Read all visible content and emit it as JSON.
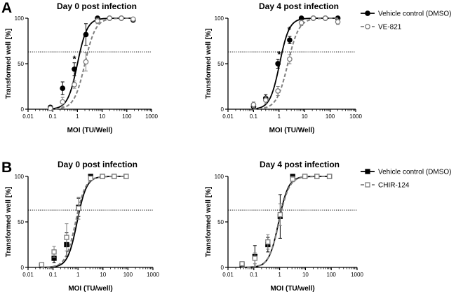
{
  "panels": [
    {
      "letter": "A",
      "legend": [
        "Vehicle control (DMSO)",
        "VE-821"
      ],
      "charts": [
        {
          "type": "line",
          "title": "Day 0 post infection",
          "xlabel": "MOI (TU/Well)",
          "ylabel": "Transformed well [%]",
          "xscale": "log",
          "xlim": [
            0.01,
            1000
          ],
          "ylim": [
            0,
            100
          ],
          "xticks": [
            "0.01",
            "0.1",
            "1",
            "10",
            "100",
            "1000"
          ],
          "yticks": [
            "0",
            "50",
            "100"
          ],
          "threshold": 63,
          "marker": "circle",
          "annotations": [
            {
              "text": "*",
              "x": 0.75,
              "y": 52
            }
          ],
          "series": [
            {
              "name": "Vehicle control (DMSO)",
              "color": "#000000",
              "filled": true,
              "dashed": false,
              "ec50": 1.0,
              "hill": 2.2,
              "x": [
                0.08,
                0.25,
                0.75,
                2.2,
                6.5,
                20,
                60,
                180
              ],
              "y": [
                2,
                23,
                44,
                82,
                100,
                100,
                100,
                98
              ],
              "err": [
                2,
                7,
                7,
                12,
                0,
                0,
                0,
                0
              ]
            },
            {
              "name": "VE-821",
              "color": "#7f7f7f",
              "filled": false,
              "dashed": true,
              "ec50": 2.0,
              "hill": 2.0,
              "x": [
                0.08,
                0.25,
                0.75,
                2.2,
                6.5,
                20,
                60,
                180
              ],
              "y": [
                1,
                8,
                27,
                52,
                97,
                100,
                100,
                99
              ],
              "err": [
                1,
                5,
                4,
                10,
                3,
                0,
                0,
                0
              ]
            }
          ]
        },
        {
          "type": "line",
          "title": "Day 4 post infection",
          "xlabel": "MOI (TU/Well)",
          "ylabel": "Transformed well [%]",
          "xscale": "log",
          "xlim": [
            0.01,
            1000
          ],
          "ylim": [
            0,
            100
          ],
          "xticks": [
            "0.01",
            "0.1",
            "1",
            "10",
            "100",
            "1000"
          ],
          "yticks": [
            "0",
            "50",
            "100"
          ],
          "threshold": 63,
          "marker": "circle",
          "annotations": [
            {
              "text": "*",
              "x": 1.0,
              "y": 57
            },
            {
              "text": "*",
              "x": 2.5,
              "y": 84
            }
          ],
          "series": [
            {
              "name": "Vehicle control (DMSO)",
              "color": "#000000",
              "filled": true,
              "dashed": false,
              "ec50": 1.05,
              "hill": 2.3,
              "x": [
                0.1,
                0.3,
                0.9,
                2.6,
                7.5,
                22,
                65,
                200
              ],
              "y": [
                3,
                12,
                50,
                76,
                100,
                100,
                100,
                100
              ],
              "err": [
                2,
                4,
                5,
                4,
                0,
                0,
                0,
                0
              ]
            },
            {
              "name": "VE-821",
              "color": "#7f7f7f",
              "filled": false,
              "dashed": true,
              "ec50": 2.2,
              "hill": 2.0,
              "x": [
                0.1,
                0.3,
                0.9,
                2.6,
                7.5,
                22,
                65,
                200
              ],
              "y": [
                5,
                10,
                20,
                55,
                95,
                100,
                100,
                96
              ],
              "err": [
                3,
                4,
                5,
                5,
                3,
                0,
                0,
                3
              ]
            }
          ]
        }
      ]
    },
    {
      "letter": "B",
      "legend": [
        "Vehicle control (DMSO)",
        "CHIR-124"
      ],
      "charts": [
        {
          "type": "line",
          "title": "Day 0 post infection",
          "xlabel": "MOI (TU/well)",
          "ylabel": "Transformed well [%]",
          "xscale": "log",
          "xlim": [
            0.01,
            1000
          ],
          "ylim": [
            0,
            100
          ],
          "xticks": [
            "0.01",
            "0.1",
            "1",
            "10",
            "100",
            "1000"
          ],
          "yticks": [
            "0",
            "50",
            "100"
          ],
          "threshold": 63,
          "marker": "square",
          "annotations": [],
          "series": [
            {
              "name": "Vehicle control (DMSO)",
              "color": "#000000",
              "filled": true,
              "dashed": false,
              "ec50": 0.92,
              "hill": 2.3,
              "x": [
                0.035,
                0.11,
                0.35,
                1.05,
                3.2,
                9.5,
                28,
                85
              ],
              "y": [
                2,
                10,
                25,
                66,
                100,
                100,
                100,
                100
              ],
              "err": [
                1,
                5,
                13,
                10,
                0,
                0,
                0,
                0
              ]
            },
            {
              "name": "CHIR-124",
              "color": "#7f7f7f",
              "filled": false,
              "dashed": true,
              "ec50": 0.8,
              "hill": 2.2,
              "x": [
                0.035,
                0.11,
                0.35,
                1.05,
                3.2,
                9.5,
                28,
                85
              ],
              "y": [
                3,
                17,
                33,
                65,
                98,
                100,
                100,
                100
              ],
              "err": [
                2,
                6,
                15,
                12,
                2,
                0,
                0,
                0
              ]
            }
          ]
        },
        {
          "type": "line",
          "title": "Day 4 post infection",
          "xlabel": "MOI (TU/well)",
          "ylabel": "Transformed well [%]",
          "xscale": "log",
          "xlim": [
            0.01,
            1000
          ],
          "ylim": [
            0,
            100
          ],
          "xticks": [
            "0.01",
            "0.1",
            "1",
            "10",
            "100",
            "1000"
          ],
          "yticks": [
            "0",
            "50",
            "100"
          ],
          "threshold": 63,
          "marker": "square",
          "annotations": [],
          "series": [
            {
              "name": "Vehicle control (DMSO)",
              "color": "#000000",
              "filled": true,
              "dashed": false,
              "ec50": 0.92,
              "hill": 2.3,
              "x": [
                0.035,
                0.11,
                0.35,
                1.05,
                3.2,
                9.5,
                28,
                85
              ],
              "y": [
                3,
                12,
                25,
                56,
                100,
                100,
                100,
                100
              ],
              "err": [
                1,
                12,
                8,
                24,
                0,
                0,
                0,
                0
              ]
            },
            {
              "name": "CHIR-124",
              "color": "#7f7f7f",
              "filled": false,
              "dashed": true,
              "ec50": 0.95,
              "hill": 2.2,
              "x": [
                0.035,
                0.11,
                0.35,
                1.05,
                3.2,
                9.5,
                28,
                85
              ],
              "y": [
                4,
                10,
                28,
                58,
                97,
                100,
                100,
                100
              ],
              "err": [
                2,
                6,
                8,
                12,
                3,
                0,
                0,
                0
              ]
            }
          ]
        }
      ]
    }
  ],
  "chart_data": [
    {
      "panel": "A",
      "type": "line",
      "title": "Day 0 post infection",
      "xlabel": "MOI (TU/Well)",
      "ylabel": "Transformed well [%]",
      "xscale": "log",
      "xlim": [
        0.01,
        1000
      ],
      "ylim": [
        0,
        100
      ],
      "series": [
        {
          "name": "Vehicle control (DMSO)",
          "x": [
            0.08,
            0.25,
            0.75,
            2.2,
            6.5,
            20,
            60,
            180
          ],
          "y": [
            2,
            23,
            44,
            82,
            100,
            100,
            100,
            98
          ]
        },
        {
          "name": "VE-821",
          "x": [
            0.08,
            0.25,
            0.75,
            2.2,
            6.5,
            20,
            60,
            180
          ],
          "y": [
            1,
            8,
            27,
            52,
            97,
            100,
            100,
            99
          ]
        }
      ]
    },
    {
      "panel": "A",
      "type": "line",
      "title": "Day 4 post infection",
      "xlabel": "MOI (TU/Well)",
      "ylabel": "Transformed well [%]",
      "xscale": "log",
      "xlim": [
        0.01,
        1000
      ],
      "ylim": [
        0,
        100
      ],
      "series": [
        {
          "name": "Vehicle control (DMSO)",
          "x": [
            0.1,
            0.3,
            0.9,
            2.6,
            7.5,
            22,
            65,
            200
          ],
          "y": [
            3,
            12,
            50,
            76,
            100,
            100,
            100,
            100
          ]
        },
        {
          "name": "VE-821",
          "x": [
            0.1,
            0.3,
            0.9,
            2.6,
            7.5,
            22,
            65,
            200
          ],
          "y": [
            5,
            10,
            20,
            55,
            95,
            100,
            100,
            96
          ]
        }
      ]
    },
    {
      "panel": "B",
      "type": "line",
      "title": "Day 0 post infection",
      "xlabel": "MOI (TU/well)",
      "ylabel": "Transformed well [%]",
      "xscale": "log",
      "xlim": [
        0.01,
        1000
      ],
      "ylim": [
        0,
        100
      ],
      "series": [
        {
          "name": "Vehicle control (DMSO)",
          "x": [
            0.035,
            0.11,
            0.35,
            1.05,
            3.2,
            9.5,
            28,
            85
          ],
          "y": [
            2,
            10,
            25,
            66,
            100,
            100,
            100,
            100
          ]
        },
        {
          "name": "CHIR-124",
          "x": [
            0.035,
            0.11,
            0.35,
            1.05,
            3.2,
            9.5,
            28,
            85
          ],
          "y": [
            3,
            17,
            33,
            65,
            98,
            100,
            100,
            100
          ]
        }
      ]
    },
    {
      "panel": "B",
      "type": "line",
      "title": "Day 4 post infection",
      "xlabel": "MOI (TU/well)",
      "ylabel": "Transformed well [%]",
      "xscale": "log",
      "xlim": [
        0.01,
        1000
      ],
      "ylim": [
        0,
        100
      ],
      "series": [
        {
          "name": "Vehicle control (DMSO)",
          "x": [
            0.035,
            0.11,
            0.35,
            1.05,
            3.2,
            9.5,
            28,
            85
          ],
          "y": [
            3,
            12,
            25,
            56,
            100,
            100,
            100,
            100
          ]
        },
        {
          "name": "CHIR-124",
          "x": [
            0.035,
            0.11,
            0.35,
            1.05,
            3.2,
            9.5,
            28,
            85
          ],
          "y": [
            4,
            10,
            28,
            58,
            97,
            100,
            100,
            100
          ]
        }
      ]
    }
  ]
}
